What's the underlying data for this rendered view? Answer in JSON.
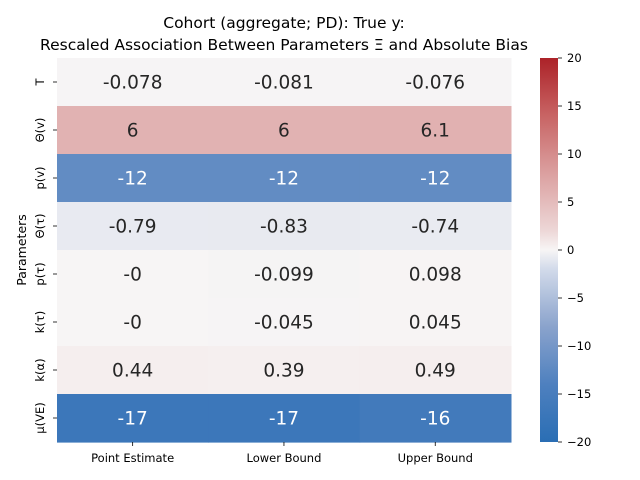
{
  "chart_data": {
    "type": "heatmap",
    "title_line1": "Cohort (aggregate; PD): True y:",
    "title_line2": "Rescaled Association Between Parameters Ξ and Absolute Bias",
    "ylabel": "Parameters",
    "xlabel": "",
    "columns": [
      "Point Estimate",
      "Lower Bound",
      "Upper Bound"
    ],
    "rows": [
      "T",
      "Θ(v)",
      "p(v)",
      "Θ(τ)",
      "p(τ)",
      "k(τ)",
      "k(α)",
      "μ(VE)"
    ],
    "values": [
      [
        -0.078,
        -0.081,
        -0.076
      ],
      [
        6,
        6,
        6.1
      ],
      [
        -12,
        -12,
        -12
      ],
      [
        -0.79,
        -0.83,
        -0.74
      ],
      [
        -0.0,
        -0.099,
        0.098
      ],
      [
        -0.0,
        -0.045,
        0.045
      ],
      [
        0.44,
        0.39,
        0.49
      ],
      [
        -17,
        -17,
        -16
      ]
    ],
    "cell_labels": [
      [
        "-0.078",
        "-0.081",
        "-0.076"
      ],
      [
        "6",
        "6",
        "6.1"
      ],
      [
        "-12",
        "-12",
        "-12"
      ],
      [
        "-0.79",
        "-0.83",
        "-0.74"
      ],
      [
        "-0",
        "-0.099",
        "0.098"
      ],
      [
        "-0",
        "-0.045",
        "0.045"
      ],
      [
        "0.44",
        "0.39",
        "0.49"
      ],
      [
        "-17",
        "-17",
        "-16"
      ]
    ],
    "colorbar": {
      "range": [
        -20,
        20
      ],
      "ticks": [
        20,
        15,
        10,
        5,
        0,
        -5,
        -10,
        -15,
        -20
      ],
      "tick_labels": [
        "20",
        "15",
        "10",
        "5",
        "0",
        "−5",
        "−10",
        "−15",
        "−20"
      ],
      "colormap": "vlag"
    }
  }
}
